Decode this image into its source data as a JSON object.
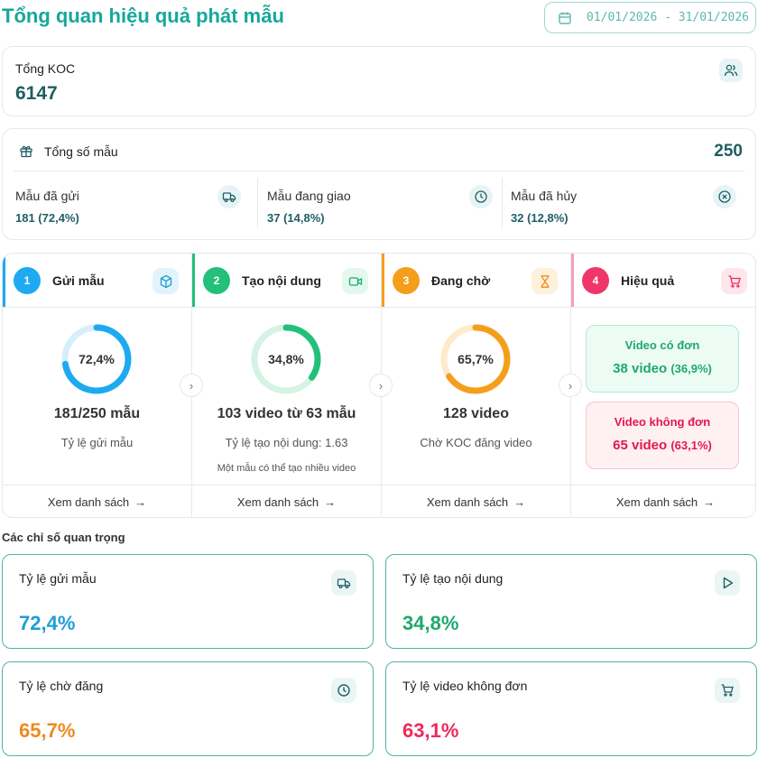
{
  "header": {
    "title": "Tổng quan hiệu quả phát mẫu",
    "date_range": "01/01/2026 - 31/01/2026"
  },
  "koc": {
    "label": "Tổng KOC",
    "value": "6147",
    "icon": "users-icon"
  },
  "samples": {
    "label": "Tổng số mẫu",
    "total": "250",
    "icon": "gift-icon",
    "breakdown": [
      {
        "label": "Mẫu đã gửi",
        "value": "181 (72,4%)",
        "icon": "truck-icon"
      },
      {
        "label": "Mẫu đang giao",
        "value": "37 (14,8%)",
        "icon": "clock-icon"
      },
      {
        "label": "Mẫu đã hủy",
        "value": "32 (12,8%)",
        "icon": "x-circle-icon"
      }
    ]
  },
  "pipeline": {
    "stages": [
      {
        "number": "1",
        "name": "Gửi mẫu",
        "icon": "box-icon",
        "color": "#1eaaf0",
        "percent": "72,4%",
        "progress": 0.724,
        "main": "181/250 mẫu",
        "sub": "Tỷ lệ gửi mẫu",
        "note": "",
        "link": "Xem danh sách"
      },
      {
        "number": "2",
        "name": "Tạo nội dung",
        "icon": "video-icon",
        "color": "#22c07a",
        "percent": "34,8%",
        "progress": 0.348,
        "main": "103 video từ 63 mẫu",
        "sub": "Tỷ lệ tạo nội dung: 1.63",
        "note": "Một mẫu có thể tạo nhiều video",
        "link": "Xem danh sách"
      },
      {
        "number": "3",
        "name": "Đang chờ",
        "icon": "hourglass-icon",
        "color": "#f59e1b",
        "percent": "65,7%",
        "progress": 0.657,
        "main": "128 video",
        "sub": "Chờ KOC đăng video",
        "note": "",
        "link": "Xem danh sách"
      },
      {
        "number": "4",
        "name": "Hiệu quả",
        "icon": "cart-icon",
        "color": "#f0356b",
        "link": "Xem danh sách",
        "with_order": {
          "title": "Video có đơn",
          "value": "38 video",
          "percent": "(36,9%)"
        },
        "without_order": {
          "title": "Video không đơn",
          "value": "65 video",
          "percent": "(63,1%)"
        }
      }
    ]
  },
  "metrics": {
    "title": "Các chỉ số quan trọng",
    "items": [
      {
        "label": "Tỷ lệ gửi mẫu",
        "value": "72,4%",
        "color": "#1e9fd6",
        "icon": "truck-icon"
      },
      {
        "label": "Tỷ lệ tạo nội dung",
        "value": "34,8%",
        "color": "#1fa86e",
        "icon": "play-icon"
      },
      {
        "label": "Tỷ lệ chờ đăng",
        "value": "65,7%",
        "color": "#ef8a1f",
        "icon": "clock-icon"
      },
      {
        "label": "Tỷ lệ video không đơn",
        "value": "63,1%",
        "color": "#ee2a5a",
        "icon": "cart-icon"
      }
    ]
  },
  "colors": {
    "brand": "#16a89b",
    "dark_teal": "#1f5e63"
  }
}
